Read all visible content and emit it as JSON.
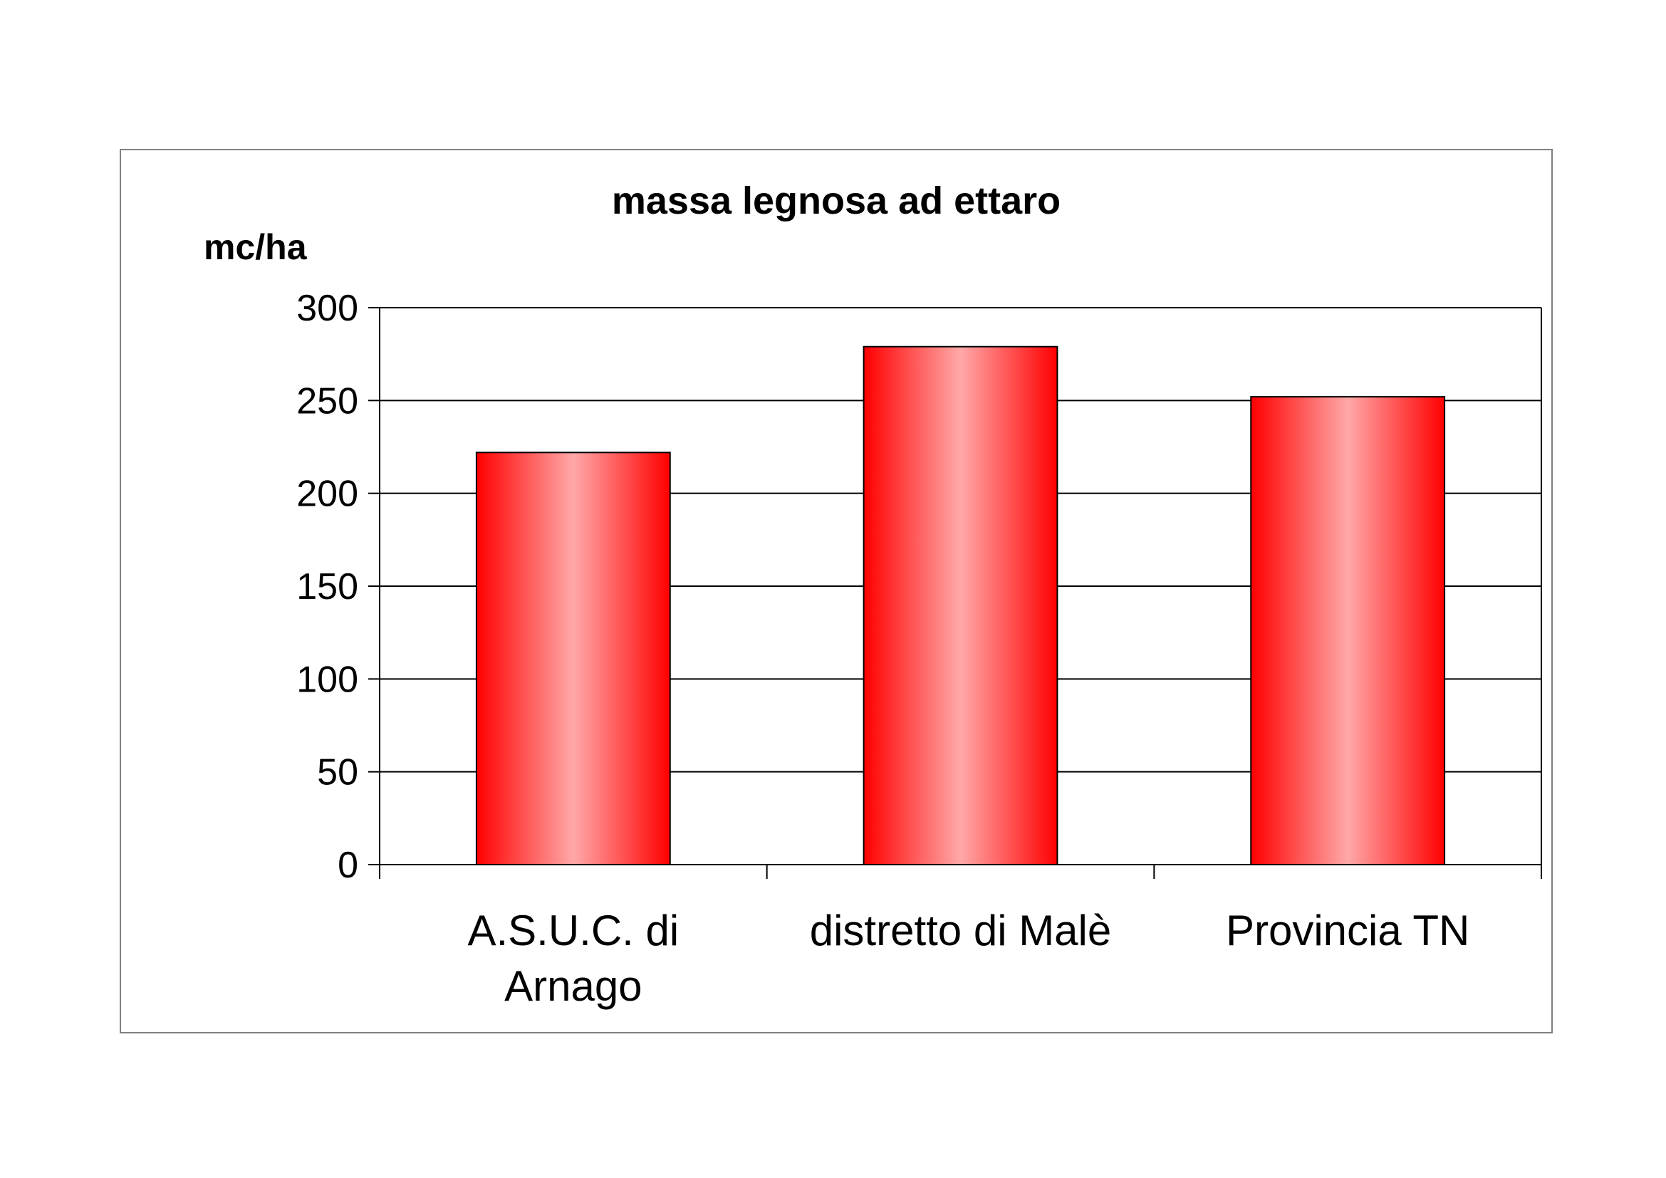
{
  "chart_data": {
    "type": "bar",
    "title": "massa legnosa ad ettaro",
    "ylabel": "mc/ha",
    "xlabel": "",
    "categories": [
      [
        "A.S.U.C. di",
        "Arnago"
      ],
      [
        "distretto di Malè"
      ],
      [
        "Provincia TN"
      ]
    ],
    "values": [
      222,
      279,
      252
    ],
    "ylim": [
      0,
      300
    ],
    "yticks": [
      "0",
      "50",
      "100",
      "150",
      "200",
      "250",
      "300"
    ],
    "grid": true,
    "legend": "none",
    "colors": {
      "bar_edge": "#ff0000",
      "bar_center": "#ffa8a8",
      "bar_outline": "#000000",
      "gridline": "#000000",
      "frame": "#808080"
    }
  }
}
